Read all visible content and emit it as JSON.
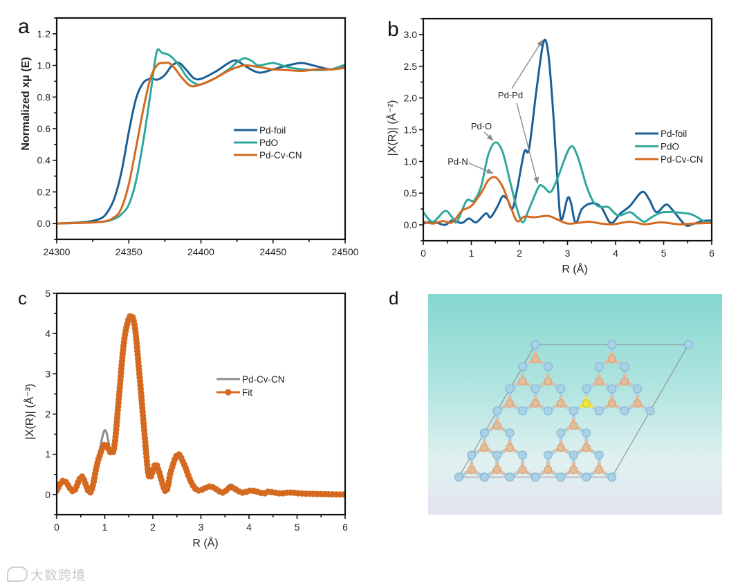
{
  "panels": {
    "a": "a",
    "b": "b",
    "c": "c",
    "d": "d"
  },
  "watermark": "大数跨境",
  "colors": {
    "pd_foil": "#1b5f97",
    "pdo": "#2fa89b",
    "pd_cv_cn": "#d4691f",
    "gray": "#8c8c8c",
    "axis": "#111111"
  },
  "chart_data": [
    {
      "type": "line",
      "panel": "a",
      "title": "",
      "xlabel": "",
      "ylabel": "Normalized xμ (E)",
      "xlim": [
        24300,
        24500
      ],
      "ylim": [
        -0.1,
        1.3
      ],
      "x_ticks": [
        "24300",
        "24350",
        "24400",
        "24450",
        "24500"
      ],
      "x_tick_values": [
        24300,
        24350,
        24400,
        24450,
        24500
      ],
      "x_minor_step": 25,
      "y_ticks": [
        "0.0",
        "0.2",
        "0.4",
        "0.6",
        "0.8",
        "1.0",
        "1.2"
      ],
      "y_tick_values": [
        0,
        0.2,
        0.4,
        0.6,
        0.8,
        1.0,
        1.2
      ],
      "y_minor_step": 0.1,
      "grid": false,
      "legend_position": "center-right",
      "series": [
        {
          "name": "Pd-foil",
          "color": "#1b5f97",
          "x": [
            24300,
            24320,
            24330,
            24335,
            24340,
            24345,
            24350,
            24355,
            24360,
            24365,
            24370,
            24375,
            24380,
            24385,
            24390,
            24395,
            24400,
            24410,
            24420,
            24425,
            24430,
            24440,
            24450,
            24460,
            24470,
            24480,
            24490,
            24500
          ],
          "y": [
            0,
            0.01,
            0.03,
            0.07,
            0.16,
            0.33,
            0.58,
            0.79,
            0.89,
            0.915,
            0.91,
            0.94,
            1.0,
            1.015,
            0.97,
            0.92,
            0.915,
            0.96,
            1.02,
            1.03,
            1.0,
            0.955,
            0.975,
            1.0,
            1.015,
            0.995,
            0.975,
            0.99
          ]
        },
        {
          "name": "PdO",
          "color": "#2fa89b",
          "x": [
            24300,
            24330,
            24340,
            24345,
            24350,
            24355,
            24360,
            24365,
            24368,
            24370,
            24373,
            24377,
            24380,
            24385,
            24390,
            24395,
            24400,
            24410,
            24420,
            24425,
            24430,
            24435,
            24440,
            24450,
            24460,
            24470,
            24480,
            24490,
            24500
          ],
          "y": [
            0,
            0.01,
            0.03,
            0.06,
            0.12,
            0.27,
            0.52,
            0.82,
            1.02,
            1.1,
            1.08,
            1.07,
            1.05,
            1.0,
            0.93,
            0.89,
            0.88,
            0.92,
            0.98,
            1.02,
            1.045,
            1.03,
            1.0,
            1.015,
            0.99,
            0.975,
            0.97,
            0.975,
            1.005
          ]
        },
        {
          "name": "Pd-Cv-CN",
          "color": "#d4691f",
          "x": [
            24300,
            24330,
            24340,
            24345,
            24350,
            24355,
            24360,
            24365,
            24370,
            24375,
            24378,
            24382,
            24387,
            24393,
            24400,
            24410,
            24420,
            24430,
            24440,
            24450,
            24460,
            24470,
            24480,
            24490,
            24500
          ],
          "y": [
            0,
            0.01,
            0.04,
            0.1,
            0.25,
            0.48,
            0.72,
            0.92,
            1.005,
            1.015,
            1.015,
            0.98,
            0.92,
            0.87,
            0.88,
            0.92,
            0.97,
            1.0,
            0.99,
            0.975,
            0.97,
            0.965,
            0.975,
            0.975,
            0.985
          ]
        }
      ]
    },
    {
      "type": "line",
      "panel": "b",
      "title": "",
      "xlabel": "R (Å)",
      "ylabel": "|X(R)| (Å⁻²)",
      "xlim": [
        0,
        6
      ],
      "ylim": [
        -0.25,
        3.25
      ],
      "x_ticks": [
        "0",
        "1",
        "2",
        "3",
        "4",
        "5",
        "6"
      ],
      "x_tick_values": [
        0,
        1,
        2,
        3,
        4,
        5,
        6
      ],
      "x_minor_step": 0.5,
      "y_ticks": [
        "0.0",
        "0.5",
        "1.0",
        "1.5",
        "2.0",
        "2.5",
        "3.0"
      ],
      "y_tick_values": [
        0,
        0.5,
        1.0,
        1.5,
        2.0,
        2.5,
        3.0
      ],
      "y_minor_step": 0.25,
      "grid": false,
      "legend_position": "center-right",
      "series": [
        {
          "name": "Pd-foil",
          "color": "#1b5f97",
          "x": [
            0,
            0.2,
            0.45,
            0.6,
            0.8,
            0.95,
            1.1,
            1.3,
            1.4,
            1.55,
            1.65,
            1.75,
            1.85,
            1.95,
            2.1,
            2.2,
            2.35,
            2.5,
            2.6,
            2.7,
            2.8,
            2.87,
            3.0,
            3.07,
            3.17,
            3.3,
            3.5,
            3.7,
            3.9,
            4.1,
            4.3,
            4.55,
            4.7,
            4.85,
            5.05,
            5.2,
            5.45,
            5.6,
            5.8,
            6.0
          ],
          "y": [
            0.02,
            0.05,
            0.0,
            0.07,
            0.03,
            0.1,
            0.04,
            0.18,
            0.12,
            0.3,
            0.45,
            0.4,
            0.25,
            0.55,
            1.15,
            1.2,
            2.1,
            2.88,
            2.7,
            1.8,
            0.6,
            0.08,
            0.42,
            0.35,
            0.03,
            0.25,
            0.34,
            0.28,
            0.03,
            0.18,
            0.3,
            0.52,
            0.4,
            0.2,
            0.32,
            0.22,
            0.0,
            0.01,
            0.06,
            0.07
          ]
        },
        {
          "name": "PdO",
          "color": "#2fa89b",
          "x": [
            0,
            0.2,
            0.45,
            0.6,
            0.7,
            0.9,
            1.05,
            1.2,
            1.35,
            1.5,
            1.65,
            1.8,
            1.95,
            2.07,
            2.2,
            2.4,
            2.5,
            2.65,
            2.8,
            3.05,
            3.2,
            3.4,
            3.55,
            3.7,
            3.85,
            4.05,
            4.3,
            4.45,
            4.6,
            4.75,
            5.0,
            5.5,
            5.7,
            5.85,
            6.0
          ],
          "y": [
            0.2,
            0.05,
            0.22,
            0.12,
            0.05,
            0.38,
            0.38,
            0.6,
            1.1,
            1.3,
            1.15,
            0.7,
            0.25,
            0.04,
            0.25,
            0.6,
            0.6,
            0.52,
            0.75,
            1.22,
            1.1,
            0.6,
            0.35,
            0.28,
            0.28,
            0.15,
            0.2,
            0.12,
            0.05,
            0.12,
            0.2,
            0.18,
            0.12,
            0.05,
            0.05
          ]
        },
        {
          "name": "Pd-Cv-CN",
          "color": "#d4691f",
          "x": [
            0,
            0.2,
            0.4,
            0.6,
            0.8,
            1.0,
            1.2,
            1.35,
            1.5,
            1.65,
            1.8,
            1.95,
            2.1,
            2.3,
            2.6,
            2.8,
            3.0,
            3.2,
            3.45,
            3.7,
            3.95,
            4.3,
            4.6,
            4.95,
            5.3,
            5.6,
            6.0
          ],
          "y": [
            0.05,
            0.02,
            0.06,
            0.04,
            0.22,
            0.3,
            0.5,
            0.7,
            0.75,
            0.6,
            0.32,
            0.06,
            0.13,
            0.12,
            0.14,
            0.08,
            0.02,
            0.03,
            0.05,
            0.02,
            0.01,
            0.05,
            0.01,
            0.04,
            0.01,
            0.02,
            0.03
          ]
        }
      ],
      "annotations": [
        {
          "text": "Pd-Pd",
          "targets": [
            [
              2.48,
              2.88
            ],
            [
              2.38,
              0.62
            ]
          ]
        },
        {
          "text": "Pd-O",
          "targets": [
            [
              1.45,
              1.3
            ]
          ]
        },
        {
          "text": "Pd-N",
          "targets": [
            [
              1.45,
              0.78
            ]
          ]
        }
      ]
    },
    {
      "type": "line",
      "panel": "c",
      "title": "",
      "xlabel": "R (Å)",
      "ylabel": "|X(R)|  (Å⁻³)",
      "xlim": [
        0,
        6
      ],
      "ylim": [
        -0.5,
        5
      ],
      "x_ticks": [
        "0",
        "1",
        "2",
        "3",
        "4",
        "5",
        "6"
      ],
      "x_tick_values": [
        0,
        1,
        2,
        3,
        4,
        5,
        6
      ],
      "x_minor_step": 0.5,
      "y_ticks": [
        "0",
        "1",
        "2",
        "3",
        "4",
        "5"
      ],
      "y_tick_values": [
        0,
        1,
        2,
        3,
        4,
        5
      ],
      "y_minor_step": 0.5,
      "grid": false,
      "legend_position": "center-right",
      "series": [
        {
          "name": "Pd-Cv-CN",
          "color": "#8c8c8c",
          "markers": false,
          "x": [
            0,
            0.15,
            0.35,
            0.52,
            0.7,
            0.85,
            1.0,
            1.12,
            1.2,
            1.3,
            1.4,
            1.52,
            1.62,
            1.72,
            1.82,
            1.92,
            2.05,
            2.12,
            2.27,
            2.38,
            2.52,
            2.65,
            2.8,
            2.95,
            3.2,
            3.45,
            3.62,
            3.85,
            4.05,
            4.3,
            4.4,
            4.65,
            4.85,
            5.2,
            6.0
          ],
          "y": [
            0.1,
            0.35,
            0.08,
            0.45,
            0.05,
            0.85,
            1.6,
            1.1,
            1.2,
            2.5,
            3.8,
            4.42,
            4.2,
            3.0,
            1.6,
            0.45,
            0.75,
            0.6,
            0.08,
            0.6,
            1.0,
            0.75,
            0.3,
            0.1,
            0.2,
            0.05,
            0.25,
            0.05,
            0.1,
            0.03,
            0.1,
            0.03,
            0.05,
            0.02,
            0.0
          ]
        },
        {
          "name": "Fit",
          "color": "#d4691f",
          "markers": true,
          "x": [
            0,
            0.15,
            0.35,
            0.52,
            0.7,
            0.85,
            1.0,
            1.12,
            1.2,
            1.3,
            1.4,
            1.52,
            1.62,
            1.72,
            1.82,
            1.92,
            2.05,
            2.12,
            2.27,
            2.38,
            2.52,
            2.65,
            2.8,
            2.95,
            3.2,
            3.45,
            3.62,
            3.85,
            4.05,
            4.3,
            4.4,
            4.65,
            4.85,
            5.2,
            6.0
          ],
          "y": [
            0.1,
            0.35,
            0.08,
            0.45,
            0.05,
            0.8,
            1.25,
            1.05,
            1.2,
            2.5,
            3.8,
            4.42,
            4.2,
            3.0,
            1.6,
            0.45,
            0.75,
            0.6,
            0.08,
            0.6,
            1.0,
            0.75,
            0.3,
            0.1,
            0.2,
            0.05,
            0.18,
            0.05,
            0.1,
            0.03,
            0.07,
            0.03,
            0.05,
            0.02,
            0.0
          ]
        }
      ]
    }
  ]
}
